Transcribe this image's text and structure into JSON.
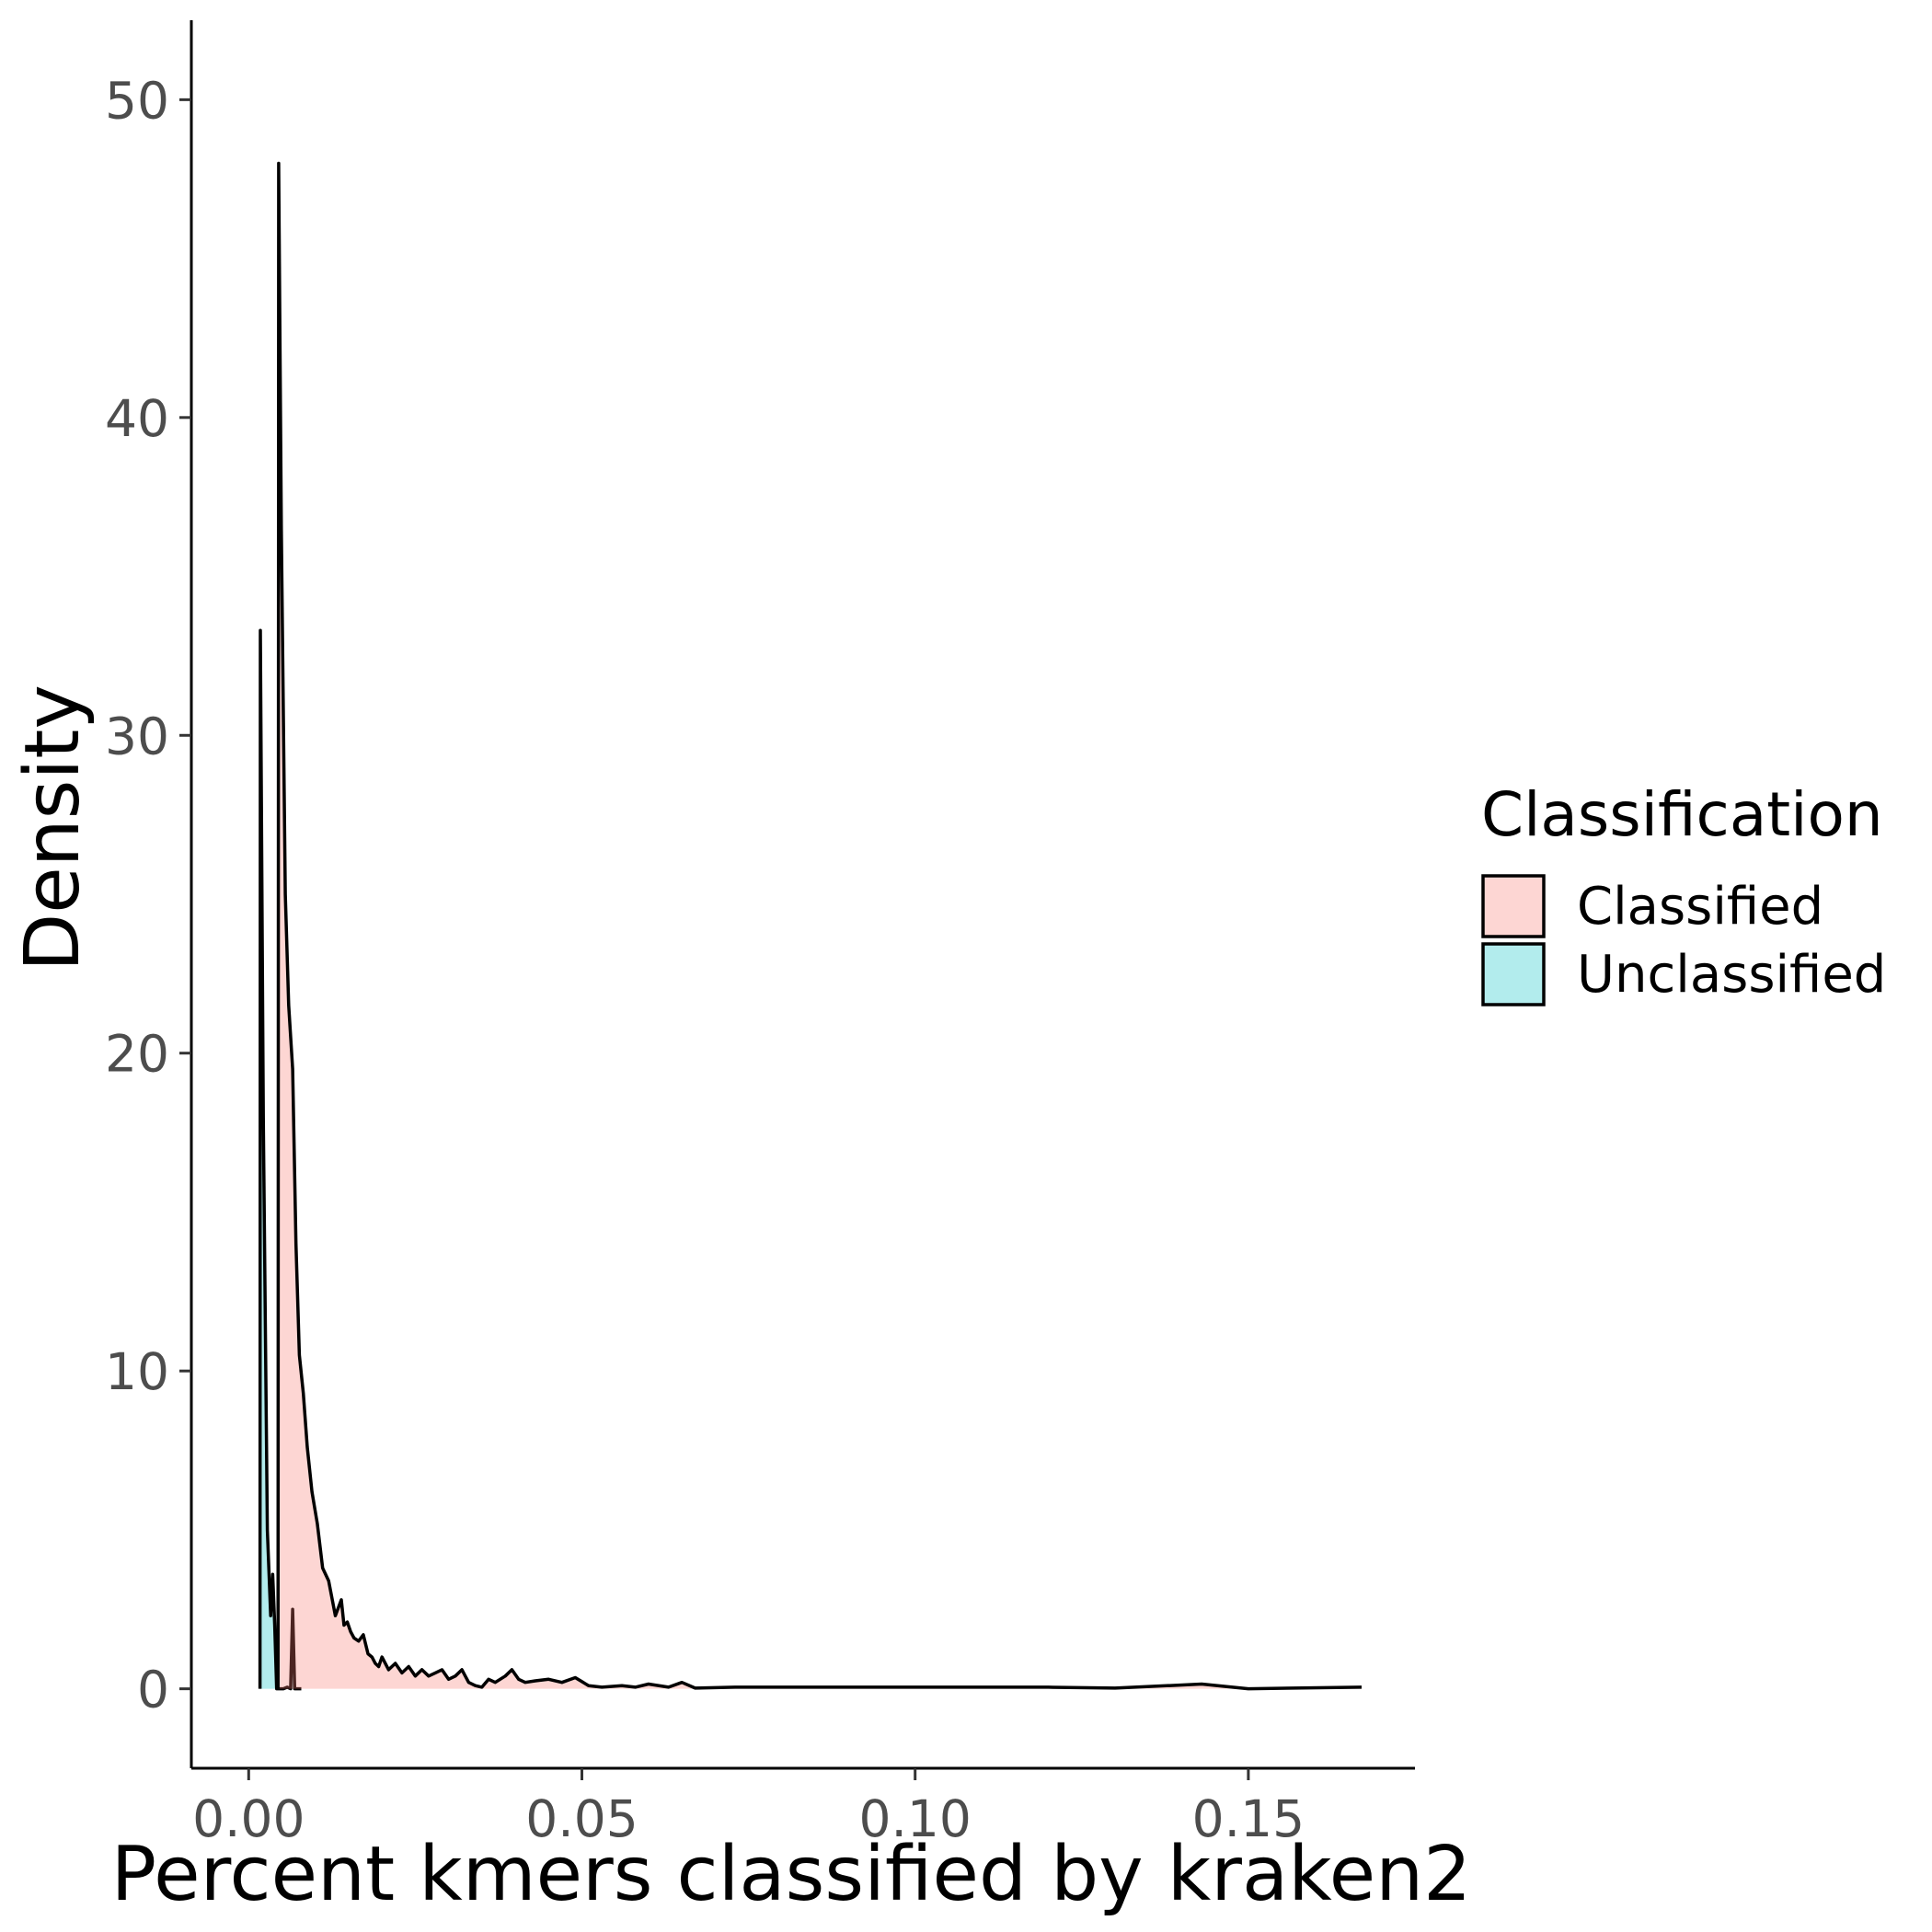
{
  "chart_data": {
    "type": "area",
    "title": "",
    "xlabel": "Percent kmers classified by kraken2",
    "ylabel": "Density",
    "xlim": [
      -0.0086,
      0.175
    ],
    "ylim": [
      -2.5,
      52.5
    ],
    "x_ticks": [
      0.0,
      0.05,
      0.1,
      0.15
    ],
    "x_tick_labels": [
      "0.00",
      "0.05",
      "0.10",
      "0.15"
    ],
    "y_ticks": [
      0,
      10,
      20,
      30,
      40,
      50
    ],
    "y_tick_labels": [
      "0",
      "10",
      "20",
      "30",
      "40",
      "50"
    ],
    "grid": false,
    "legend": {
      "title": "Classification",
      "position": "right",
      "entries": [
        "Classified",
        "Unclassified"
      ]
    },
    "series": [
      {
        "name": "Classified",
        "color": "#F8766D",
        "x": [
          0.0044,
          0.0045,
          0.0049,
          0.0055,
          0.006,
          0.0066,
          0.0071,
          0.0076,
          0.0082,
          0.0088,
          0.0095,
          0.0103,
          0.0111,
          0.012,
          0.013,
          0.0139,
          0.0143,
          0.0148,
          0.0153,
          0.0158,
          0.0165,
          0.0172,
          0.0179,
          0.0185,
          0.019,
          0.0195,
          0.02,
          0.021,
          0.022,
          0.023,
          0.024,
          0.025,
          0.026,
          0.027,
          0.028,
          0.029,
          0.03,
          0.031,
          0.032,
          0.033,
          0.034,
          0.035,
          0.036,
          0.037,
          0.0385,
          0.0395,
          0.0405,
          0.0415,
          0.043,
          0.045,
          0.047,
          0.049,
          0.051,
          0.053,
          0.056,
          0.058,
          0.06,
          0.063,
          0.065,
          0.067,
          0.073,
          0.08,
          0.091,
          0.098,
          0.103,
          0.11,
          0.12,
          0.13,
          0.143,
          0.15,
          0.167
        ],
        "values": [
          0.0,
          48.0,
          36.5,
          25.0,
          21.5,
          19.5,
          14.0,
          10.5,
          9.3,
          7.6,
          6.2,
          5.2,
          3.8,
          3.4,
          2.3,
          2.8,
          2.0,
          2.1,
          1.8,
          1.6,
          1.5,
          1.7,
          1.1,
          1.0,
          0.8,
          0.7,
          1.0,
          0.6,
          0.8,
          0.5,
          0.7,
          0.4,
          0.6,
          0.4,
          0.5,
          0.6,
          0.3,
          0.4,
          0.6,
          0.2,
          0.1,
          0.05,
          0.3,
          0.2,
          0.4,
          0.6,
          0.3,
          0.2,
          0.25,
          0.3,
          0.2,
          0.35,
          0.1,
          0.05,
          0.1,
          0.05,
          0.15,
          0.05,
          0.2,
          0.02,
          0.05,
          0.05,
          0.05,
          0.05,
          0.05,
          0.05,
          0.05,
          0.02,
          0.15,
          0.0,
          0.05
        ]
      },
      {
        "name": "Unclassified",
        "color": "#00BFC4",
        "x": [
          0.0017,
          0.00175,
          0.0022,
          0.0028,
          0.0033,
          0.0036,
          0.0039,
          0.0042,
          0.0046,
          0.0052,
          0.0058,
          0.0063,
          0.0066,
          0.0069,
          0.0073,
          0.0076,
          0.0079
        ],
        "values": [
          0.0,
          33.3,
          18.0,
          5.0,
          2.3,
          3.6,
          2.0,
          0.0,
          0.0,
          0.0,
          0.05,
          0.0,
          2.5,
          0.0,
          0.0,
          0.0,
          0.0
        ]
      }
    ]
  }
}
